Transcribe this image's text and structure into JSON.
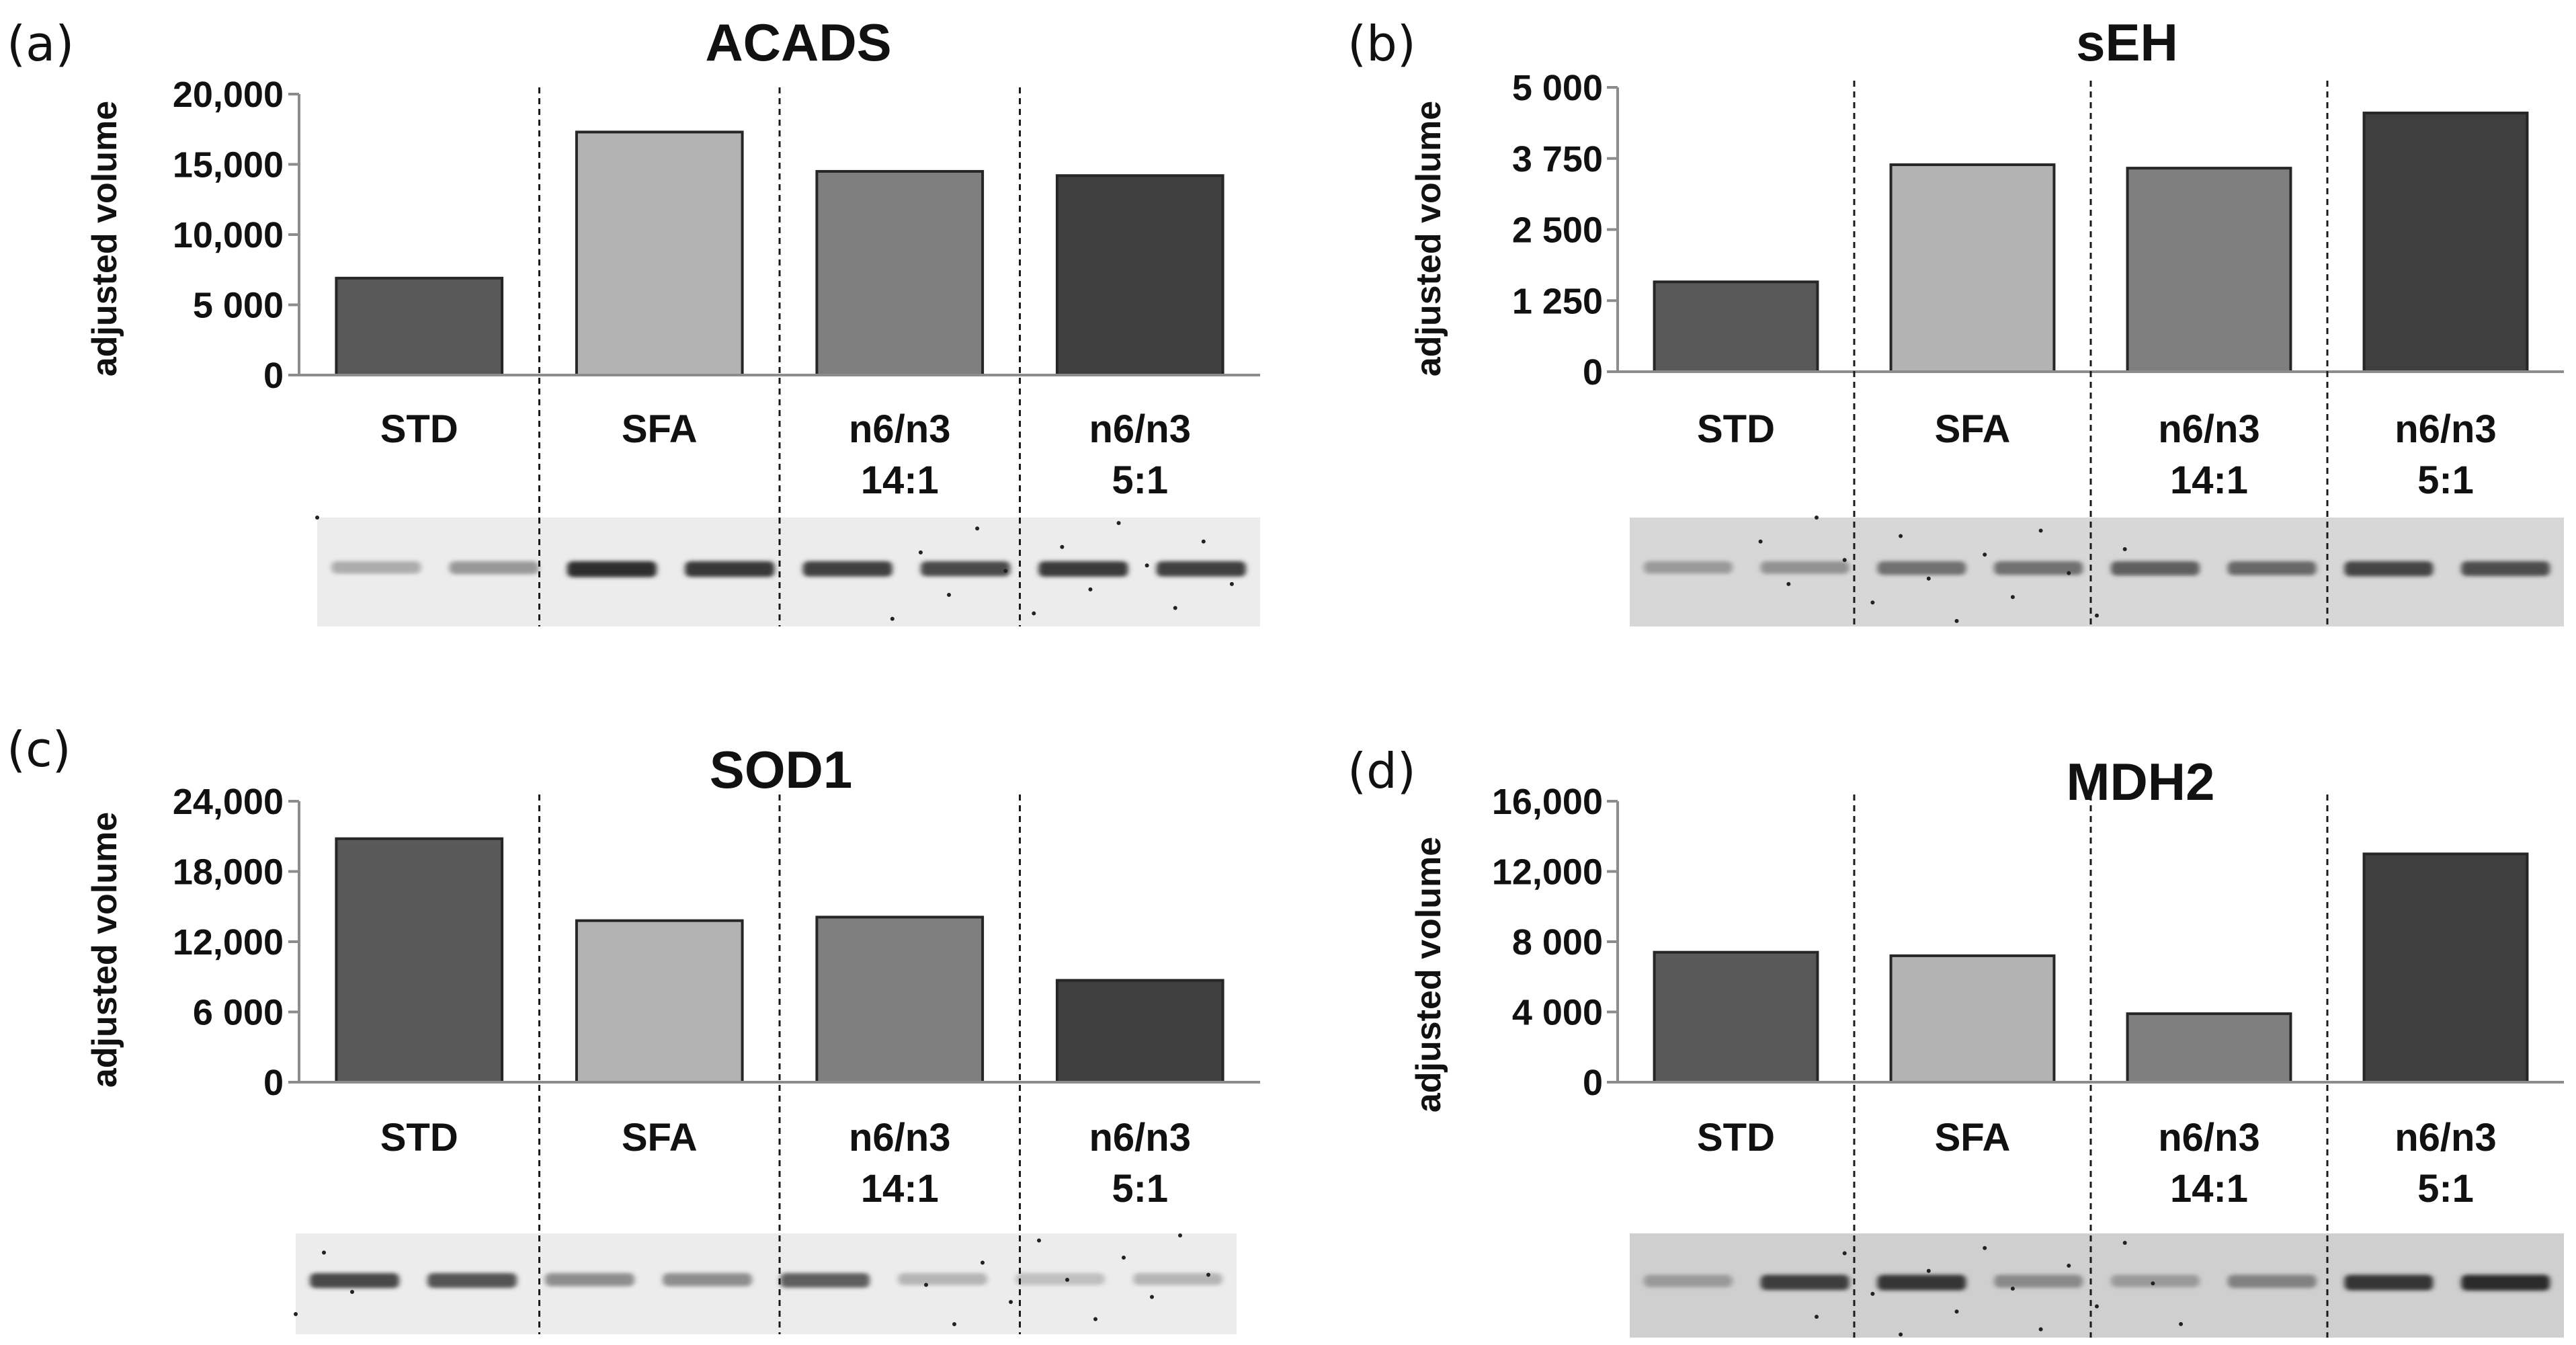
{
  "chart_data": [
    {
      "panel": "(a)",
      "type": "bar",
      "title": "ACADS",
      "ylabel": "adjusted volume",
      "xlabel": "",
      "ylim": [
        0,
        20000
      ],
      "yticks": [
        0,
        5000,
        10000,
        15000,
        20000
      ],
      "ytick_labels": [
        "0",
        "5 000",
        "10,000",
        "15,000",
        "20,000"
      ],
      "categories": [
        [
          "STD"
        ],
        [
          "SFA"
        ],
        [
          "n6/n3",
          "14:1"
        ],
        [
          "n6/n3",
          "5:1"
        ]
      ],
      "values": [
        6900,
        17300,
        14500,
        14200
      ],
      "bar_colors": [
        "#595959",
        "#b3b3b3",
        "#7f7f7f",
        "#3f3f3f"
      ],
      "blot": {
        "background": "#ececec",
        "bands": [
          {
            "dark": 0.3,
            "w": 1.0
          },
          {
            "dark": 0.4,
            "w": 1.0
          },
          {
            "dark": 0.95,
            "w": 1.0
          },
          {
            "dark": 0.9,
            "w": 1.0
          },
          {
            "dark": 0.85,
            "w": 1.0
          },
          {
            "dark": 0.8,
            "w": 1.0
          },
          {
            "dark": 0.88,
            "w": 1.0
          },
          {
            "dark": 0.85,
            "w": 1.0
          }
        ]
      }
    },
    {
      "panel": "(b)",
      "type": "bar",
      "title": "sEH",
      "ylabel": "adjusted volume",
      "xlabel": "",
      "ylim": [
        0,
        5000
      ],
      "yticks": [
        0,
        1250,
        2500,
        3750,
        5000
      ],
      "ytick_labels": [
        "0",
        "1 250",
        "2 500",
        "3 750",
        "5 000"
      ],
      "categories": [
        [
          "STD"
        ],
        [
          "SFA"
        ],
        [
          "n6/n3",
          "14:1"
        ],
        [
          "n6/n3",
          "5:1"
        ]
      ],
      "values": [
        1580,
        3640,
        3580,
        4550
      ],
      "bar_colors": [
        "#595959",
        "#b3b3b3",
        "#7f7f7f",
        "#3f3f3f"
      ],
      "blot": {
        "background": "#d7d7d7",
        "bands": [
          {
            "dark": 0.3,
            "w": 1.0
          },
          {
            "dark": 0.35,
            "w": 1.0
          },
          {
            "dark": 0.55,
            "w": 1.0
          },
          {
            "dark": 0.55,
            "w": 1.0
          },
          {
            "dark": 0.65,
            "w": 1.0
          },
          {
            "dark": 0.6,
            "w": 1.0
          },
          {
            "dark": 0.8,
            "w": 1.0
          },
          {
            "dark": 0.75,
            "w": 1.0
          }
        ]
      }
    },
    {
      "panel": "(c)",
      "type": "bar",
      "title": "SOD1",
      "ylabel": "adjusted volume",
      "xlabel": "",
      "ylim": [
        0,
        24000
      ],
      "yticks": [
        0,
        6000,
        12000,
        18000,
        24000
      ],
      "ytick_labels": [
        "0",
        "6 000",
        "12,000",
        "18,000",
        "24,000"
      ],
      "categories": [
        [
          "STD"
        ],
        [
          "SFA"
        ],
        [
          "n6/n3",
          "14:1"
        ],
        [
          "n6/n3",
          "5:1"
        ]
      ],
      "values": [
        20800,
        13800,
        14100,
        8700
      ],
      "bar_colors": [
        "#595959",
        "#b3b3b3",
        "#7f7f7f",
        "#3f3f3f"
      ],
      "blot": {
        "background": "#ececec",
        "bands": [
          {
            "dark": 0.8,
            "w": 1.0
          },
          {
            "dark": 0.75,
            "w": 1.0
          },
          {
            "dark": 0.45,
            "w": 1.0
          },
          {
            "dark": 0.45,
            "w": 1.0
          },
          {
            "dark": 0.7,
            "w": 1.0
          },
          {
            "dark": 0.25,
            "w": 1.0
          },
          {
            "dark": 0.2,
            "w": 1.0
          },
          {
            "dark": 0.25,
            "w": 1.0
          }
        ]
      }
    },
    {
      "panel": "(d)",
      "type": "bar",
      "title": "MDH2",
      "ylabel": "adjusted volume",
      "xlabel": "",
      "ylim": [
        0,
        16000
      ],
      "yticks": [
        0,
        4000,
        8000,
        12000,
        16000
      ],
      "ytick_labels": [
        "0",
        "4 000",
        "8 000",
        "12,000",
        "16,000"
      ],
      "categories": [
        [
          "STD"
        ],
        [
          "SFA"
        ],
        [
          "n6/n3",
          "14:1"
        ],
        [
          "n6/n3",
          "5:1"
        ]
      ],
      "values": [
        7400,
        7200,
        3900,
        13000
      ],
      "bar_colors": [
        "#595959",
        "#b3b3b3",
        "#7f7f7f",
        "#3f3f3f"
      ],
      "blot": {
        "background": "#cfcfcf",
        "bands": [
          {
            "dark": 0.3,
            "w": 1.0
          },
          {
            "dark": 0.85,
            "w": 1.0
          },
          {
            "dark": 0.9,
            "w": 1.0
          },
          {
            "dark": 0.4,
            "w": 1.0
          },
          {
            "dark": 0.3,
            "w": 1.0
          },
          {
            "dark": 0.45,
            "w": 1.0
          },
          {
            "dark": 0.9,
            "w": 1.0
          },
          {
            "dark": 0.95,
            "w": 1.0
          }
        ]
      }
    }
  ]
}
